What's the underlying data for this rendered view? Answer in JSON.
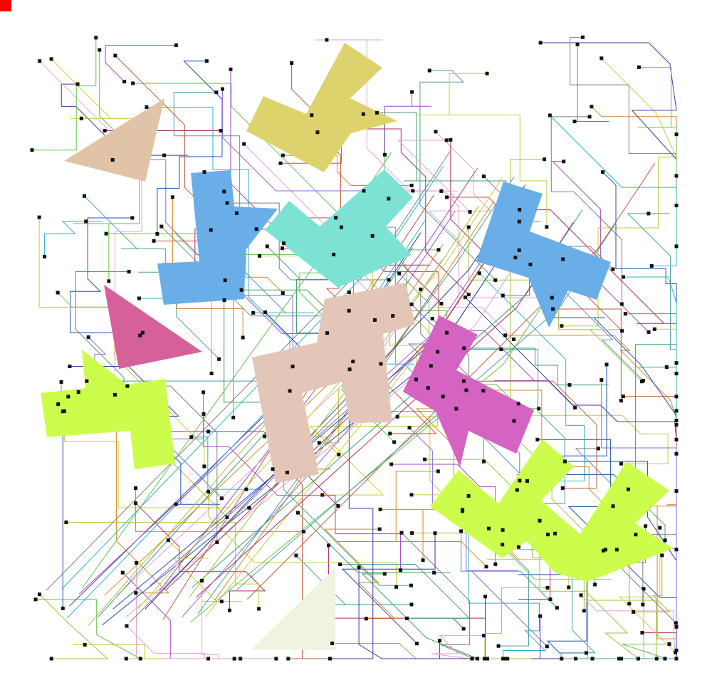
{
  "canvas": {
    "background": "#ffffff",
    "corner_marker_color": "#ff0000"
  },
  "shapes": [
    {
      "name": "tan-triangle-shape",
      "color": "#e1c3a8"
    },
    {
      "name": "yellow-l-shape",
      "color": "#ddd36d"
    },
    {
      "name": "blue-t-shape",
      "color": "#6aaee8"
    },
    {
      "name": "cyan-v-shape",
      "color": "#7ce3d4"
    },
    {
      "name": "blue-right-t-shape",
      "color": "#6aaee8"
    },
    {
      "name": "pink-triangle-shape",
      "color": "#d6609a"
    },
    {
      "name": "lime-left-shape",
      "color": "#cdfd4c"
    },
    {
      "name": "beige-big-shape",
      "color": "#e3c6b7"
    },
    {
      "name": "magenta-shape",
      "color": "#d563c2"
    },
    {
      "name": "lime-zigzag-shape",
      "color": "#cdfd4c"
    },
    {
      "name": "pale-triangle-shape",
      "color": "#eff3df"
    }
  ],
  "wire_colors": [
    "#1f4fb5",
    "#2bb3c9",
    "#a14ac1",
    "#63c24a",
    "#c1583a",
    "#e4a0d4",
    "#c9c93a",
    "#4a9f9f",
    "#8a6ad8",
    "#3aa06a",
    "#d28a2a",
    "#7d7d7d",
    "#b02a6a",
    "#3a3aa0",
    "#a0c03a"
  ]
}
